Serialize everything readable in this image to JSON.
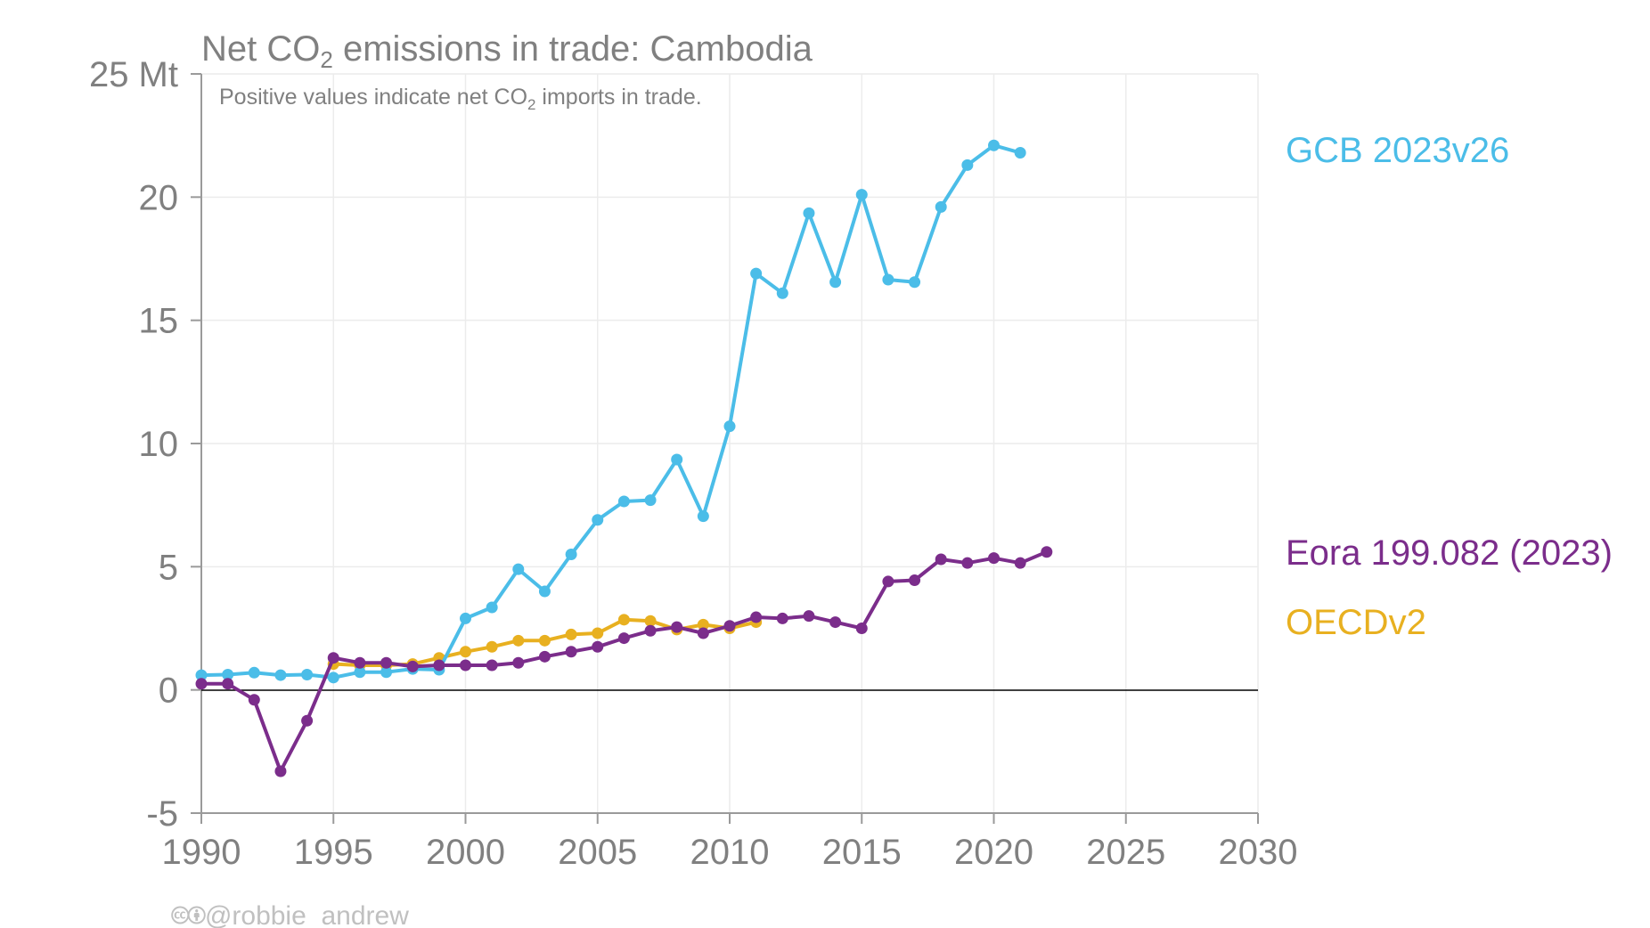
{
  "chart_data": {
    "type": "line",
    "title_main": "Net CO",
    "title_sub_digit": "2",
    "title_rest": " emissions in trade: Cambodia",
    "subtitle_main": "Positive values indicate net CO",
    "subtitle_sub_digit": "2",
    "subtitle_rest": " imports in trade.",
    "ylim": [
      -5,
      25
    ],
    "xlim": [
      1990,
      2030
    ],
    "y_unit": "Mt",
    "y_ticks": [
      -5,
      0,
      5,
      10,
      15,
      20,
      25
    ],
    "y_tick_labels": [
      "-5",
      "0",
      "5",
      "10",
      "15",
      "20",
      "25 Mt"
    ],
    "x_ticks": [
      1990,
      1995,
      2000,
      2005,
      2010,
      2015,
      2020,
      2025,
      2030
    ],
    "x_tick_labels": [
      "1990",
      "1995",
      "2000",
      "2005",
      "2010",
      "2015",
      "2020",
      "2025",
      "2030"
    ],
    "grid": true,
    "legend": "series labels at right of plot",
    "series": [
      {
        "name": "OECDv2",
        "color": "#E8B020",
        "x": [
          1995,
          1996,
          1997,
          1998,
          1999,
          2000,
          2001,
          2002,
          2003,
          2004,
          2005,
          2006,
          2007,
          2008,
          2009,
          2010,
          2011
        ],
        "y": [
          1.05,
          1.0,
          1.0,
          1.05,
          1.3,
          1.55,
          1.75,
          2.0,
          2.0,
          2.25,
          2.3,
          2.85,
          2.8,
          2.45,
          2.65,
          2.5,
          2.75
        ]
      },
      {
        "name": "GCB 2023v26",
        "color": "#4BBDE8",
        "x": [
          1990,
          1991,
          1992,
          1993,
          1994,
          1995,
          1996,
          1997,
          1998,
          1999,
          2000,
          2001,
          2002,
          2003,
          2004,
          2005,
          2006,
          2007,
          2008,
          2009,
          2010,
          2011,
          2012,
          2013,
          2014,
          2015,
          2016,
          2017,
          2018,
          2019,
          2020,
          2021
        ],
        "y": [
          0.6,
          0.62,
          0.7,
          0.6,
          0.62,
          0.5,
          0.72,
          0.72,
          0.85,
          0.82,
          2.9,
          3.35,
          4.9,
          4.0,
          5.5,
          6.9,
          7.65,
          7.7,
          9.35,
          7.05,
          10.7,
          16.9,
          16.1,
          19.35,
          16.55,
          20.1,
          16.65,
          16.55,
          19.6,
          21.3,
          22.1,
          21.8
        ]
      },
      {
        "name": "Eora 199.082 (2023)",
        "color": "#7B2D8B",
        "x": [
          1990,
          1991,
          1992,
          1993,
          1994,
          1995,
          1996,
          1997,
          1998,
          1999,
          2000,
          2001,
          2002,
          2003,
          2004,
          2005,
          2006,
          2007,
          2008,
          2009,
          2010,
          2011,
          2012,
          2013,
          2014,
          2015,
          2016,
          2017,
          2018,
          2019,
          2020,
          2021,
          2022
        ],
        "y": [
          0.25,
          0.25,
          -0.4,
          -3.3,
          -1.25,
          1.3,
          1.1,
          1.1,
          0.95,
          1.0,
          1.0,
          1.0,
          1.1,
          1.35,
          1.55,
          1.75,
          2.1,
          2.4,
          2.55,
          2.3,
          2.6,
          2.95,
          2.9,
          3.0,
          2.75,
          2.5,
          4.4,
          4.45,
          5.3,
          5.15,
          5.35,
          5.15,
          5.6
        ]
      }
    ]
  },
  "credit": {
    "cc_icons": "🅭🅯",
    "handle": "@robbie_andrew"
  }
}
